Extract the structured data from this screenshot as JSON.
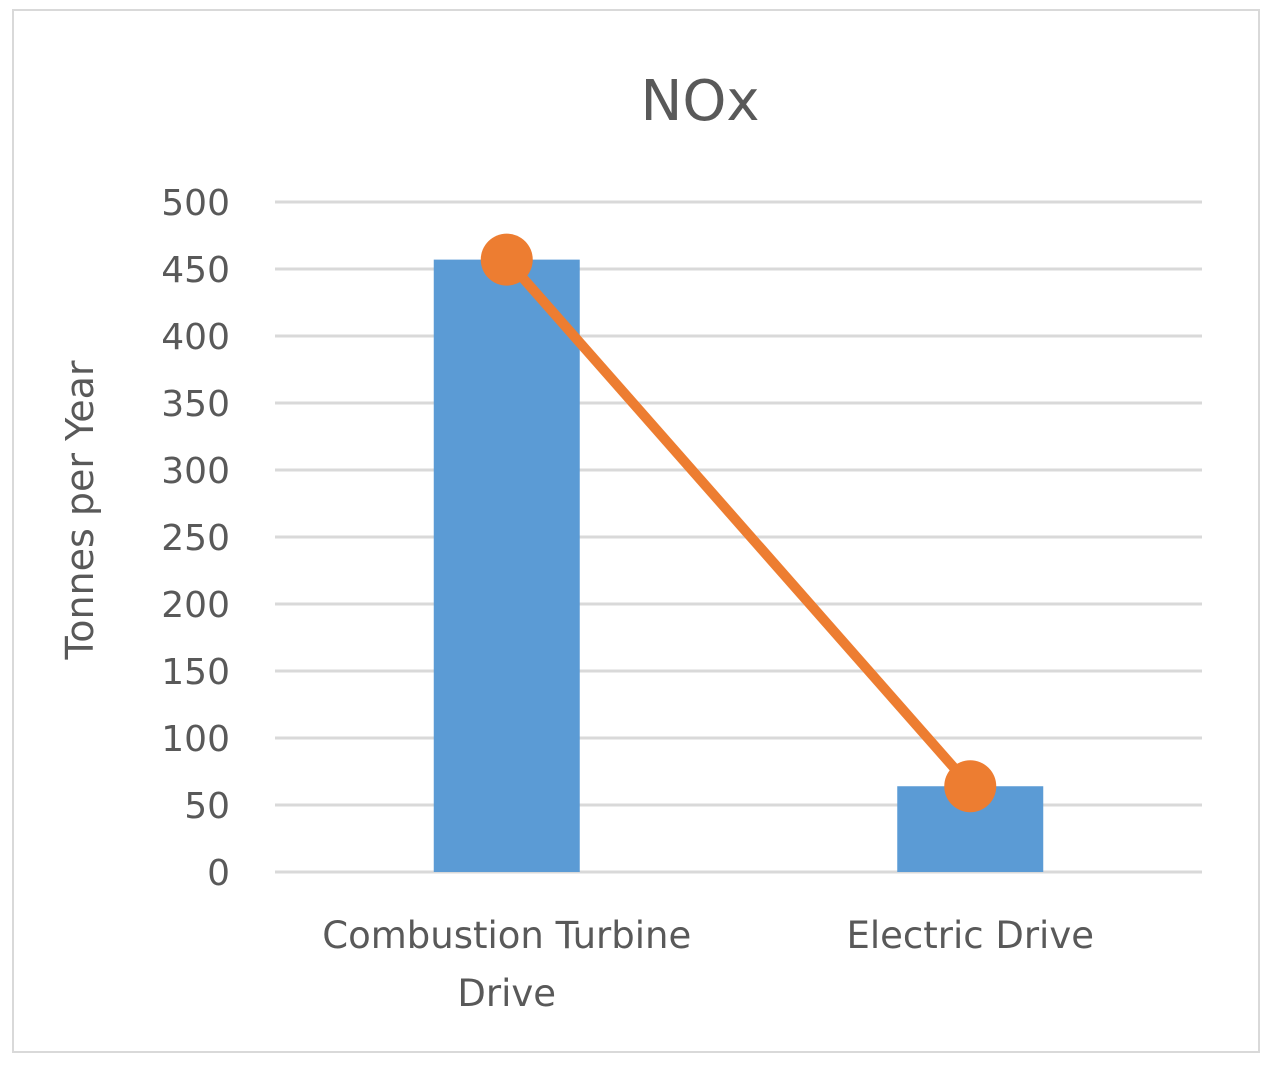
{
  "chart_data": {
    "type": "bar",
    "title": "NOx",
    "xlabel": "",
    "ylabel": "Tonnes per Year",
    "ylim": [
      0,
      500
    ],
    "yticks": [
      0,
      50,
      100,
      150,
      200,
      250,
      300,
      350,
      400,
      450,
      500
    ],
    "grid": true,
    "legend": "none",
    "categories": [
      [
        "Combustion Turbine",
        "Drive"
      ],
      [
        "Electric Drive"
      ]
    ],
    "series": [
      {
        "name": "bar",
        "kind": "bar",
        "color": "#5b9bd5",
        "values": [
          457,
          64
        ]
      },
      {
        "name": "line",
        "kind": "line",
        "color": "#ed7d31",
        "values": [
          457,
          64
        ]
      }
    ]
  }
}
